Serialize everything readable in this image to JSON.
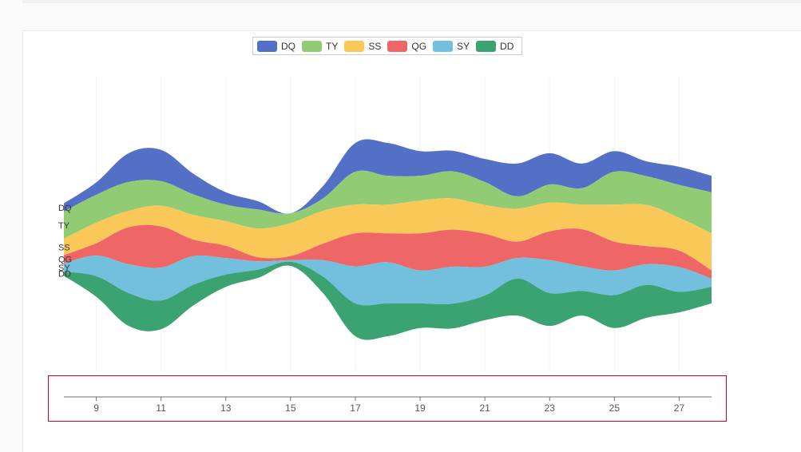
{
  "chart_data": {
    "type": "area",
    "subtype": "themeRiver",
    "legend_position": "top-center",
    "x_ticks": [
      9,
      11,
      13,
      15,
      17,
      19,
      21,
      23,
      25,
      27
    ],
    "x": [
      8,
      9,
      10,
      11,
      12,
      13,
      14,
      15,
      16,
      17,
      18,
      19,
      20,
      21,
      22,
      23,
      24,
      25,
      26,
      27,
      28
    ],
    "series": [
      {
        "name": "DQ",
        "color": "#5470c6",
        "values": [
          10,
          15,
          35,
          38,
          25,
          15,
          10,
          0,
          15,
          35,
          40,
          30,
          25,
          28,
          40,
          38,
          30,
          25,
          18,
          22,
          20
        ]
      },
      {
        "name": "TY",
        "color": "#91cc75",
        "values": [
          33,
          34,
          35,
          30,
          25,
          20,
          23,
          12,
          15,
          40,
          35,
          30,
          33,
          28,
          15,
          22,
          20,
          40,
          35,
          40,
          50
        ]
      },
      {
        "name": "SS",
        "color": "#fac858",
        "values": [
          20,
          25,
          20,
          25,
          30,
          30,
          35,
          40,
          40,
          35,
          35,
          40,
          38,
          35,
          40,
          35,
          30,
          45,
          50,
          40,
          45
        ]
      },
      {
        "name": "QG",
        "color": "#ee6666",
        "values": [
          10,
          15,
          45,
          50,
          20,
          15,
          5,
          5,
          20,
          40,
          35,
          45,
          45,
          40,
          20,
          35,
          45,
          35,
          22,
          20,
          10
        ]
      },
      {
        "name": "SY",
        "color": "#73c0de",
        "values": [
          10,
          25,
          35,
          40,
          35,
          20,
          10,
          2,
          20,
          45,
          50,
          40,
          45,
          35,
          25,
          40,
          30,
          30,
          25,
          30,
          10
        ]
      },
      {
        "name": "DD",
        "color": "#3ba272",
        "values": [
          5,
          25,
          40,
          35,
          25,
          15,
          10,
          5,
          20,
          40,
          40,
          30,
          30,
          30,
          45,
          40,
          30,
          40,
          40,
          25,
          20
        ]
      }
    ]
  }
}
